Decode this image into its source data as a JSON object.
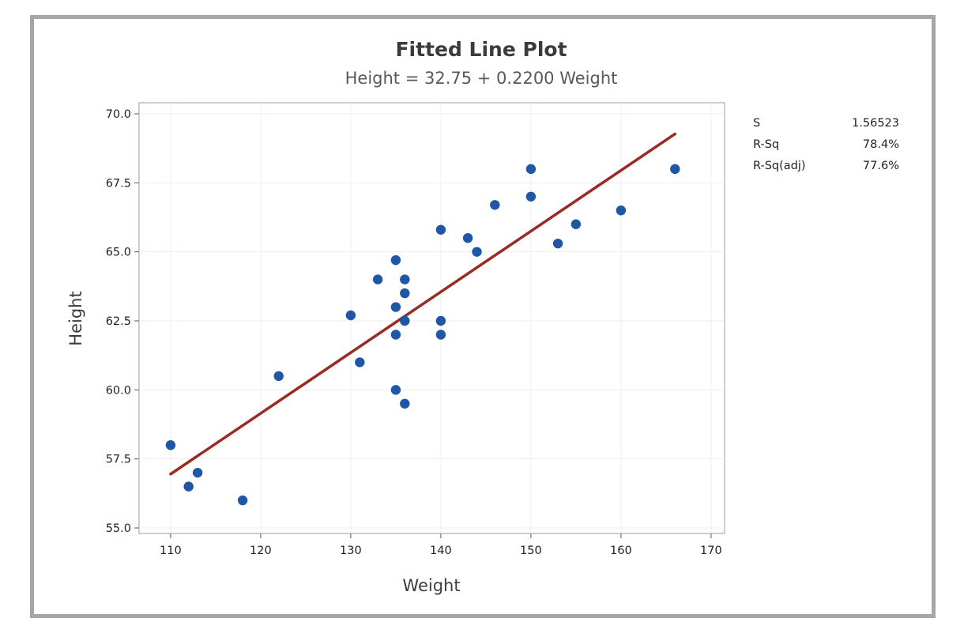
{
  "chart_data": {
    "type": "scatter",
    "title": "Fitted Line Plot",
    "subtitle": "Height = 32.75 + 0.2200 Weight",
    "xlabel": "Weight",
    "ylabel": "Height",
    "xlim": [
      106.5,
      171.5
    ],
    "ylim": [
      54.8,
      70.4
    ],
    "x_ticks": [
      110,
      120,
      130,
      140,
      150,
      160,
      170
    ],
    "y_ticks": [
      55.0,
      57.5,
      60.0,
      62.5,
      65.0,
      67.5,
      70.0
    ],
    "x_tick_labels": [
      "110",
      "120",
      "130",
      "140",
      "150",
      "160",
      "170"
    ],
    "y_tick_labels": [
      "55.0",
      "57.5",
      "60.0",
      "62.5",
      "65.0",
      "67.5",
      "70.0"
    ],
    "grid": true,
    "points": [
      {
        "x": 110,
        "y": 58.0
      },
      {
        "x": 112,
        "y": 56.5
      },
      {
        "x": 113,
        "y": 57.0
      },
      {
        "x": 118,
        "y": 56.0
      },
      {
        "x": 122,
        "y": 60.5
      },
      {
        "x": 130,
        "y": 62.7
      },
      {
        "x": 131,
        "y": 61.0
      },
      {
        "x": 133,
        "y": 64.0
      },
      {
        "x": 135,
        "y": 64.7
      },
      {
        "x": 135,
        "y": 63.0
      },
      {
        "x": 135,
        "y": 62.0
      },
      {
        "x": 135,
        "y": 60.0
      },
      {
        "x": 136,
        "y": 64.0
      },
      {
        "x": 136,
        "y": 63.5
      },
      {
        "x": 136,
        "y": 62.5
      },
      {
        "x": 136,
        "y": 59.5
      },
      {
        "x": 140,
        "y": 65.8
      },
      {
        "x": 140,
        "y": 62.5
      },
      {
        "x": 140,
        "y": 62.0
      },
      {
        "x": 143,
        "y": 65.5
      },
      {
        "x": 144,
        "y": 65.0
      },
      {
        "x": 146,
        "y": 66.7
      },
      {
        "x": 150,
        "y": 68.0
      },
      {
        "x": 150,
        "y": 67.0
      },
      {
        "x": 153,
        "y": 65.3
      },
      {
        "x": 155,
        "y": 66.0
      },
      {
        "x": 160,
        "y": 66.5
      },
      {
        "x": 166,
        "y": 68.0
      }
    ],
    "fit_line": {
      "intercept": 32.75,
      "slope": 0.22,
      "x_range": [
        110,
        166
      ]
    },
    "stats": [
      {
        "label": "S",
        "value": "1.56523"
      },
      {
        "label": "R-Sq",
        "value": "78.4%"
      },
      {
        "label": "R-Sq(adj)",
        "value": "77.6%"
      }
    ],
    "colors": {
      "points": "#1f57a6",
      "fit_line": "#9a2b22",
      "grid": "#eeeeee",
      "frame": "#a6a6a6"
    }
  }
}
